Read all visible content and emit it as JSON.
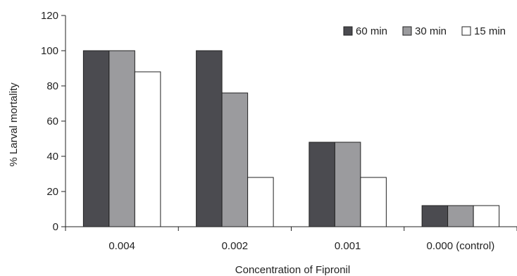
{
  "chart_data": {
    "type": "bar",
    "categories": [
      "0.004",
      "0.002",
      "0.001",
      "0.000 (control)"
    ],
    "series": [
      {
        "name": "60 min",
        "color": "#4b4b50",
        "values": [
          100,
          100,
          48,
          12
        ]
      },
      {
        "name": "30 min",
        "color": "#9b9b9e",
        "values": [
          100,
          76,
          48,
          12
        ]
      },
      {
        "name": "15 min",
        "color": "#ffffff",
        "values": [
          88,
          28,
          28,
          12
        ]
      }
    ],
    "title": "",
    "xlabel": "Concentration of Fipronil",
    "ylabel": "% Larval mortality",
    "ylim": [
      0,
      120
    ],
    "yticks": [
      "0",
      "20",
      "40",
      "60",
      "80",
      "100",
      "120"
    ],
    "grid": false,
    "legend_position": "top-right"
  }
}
